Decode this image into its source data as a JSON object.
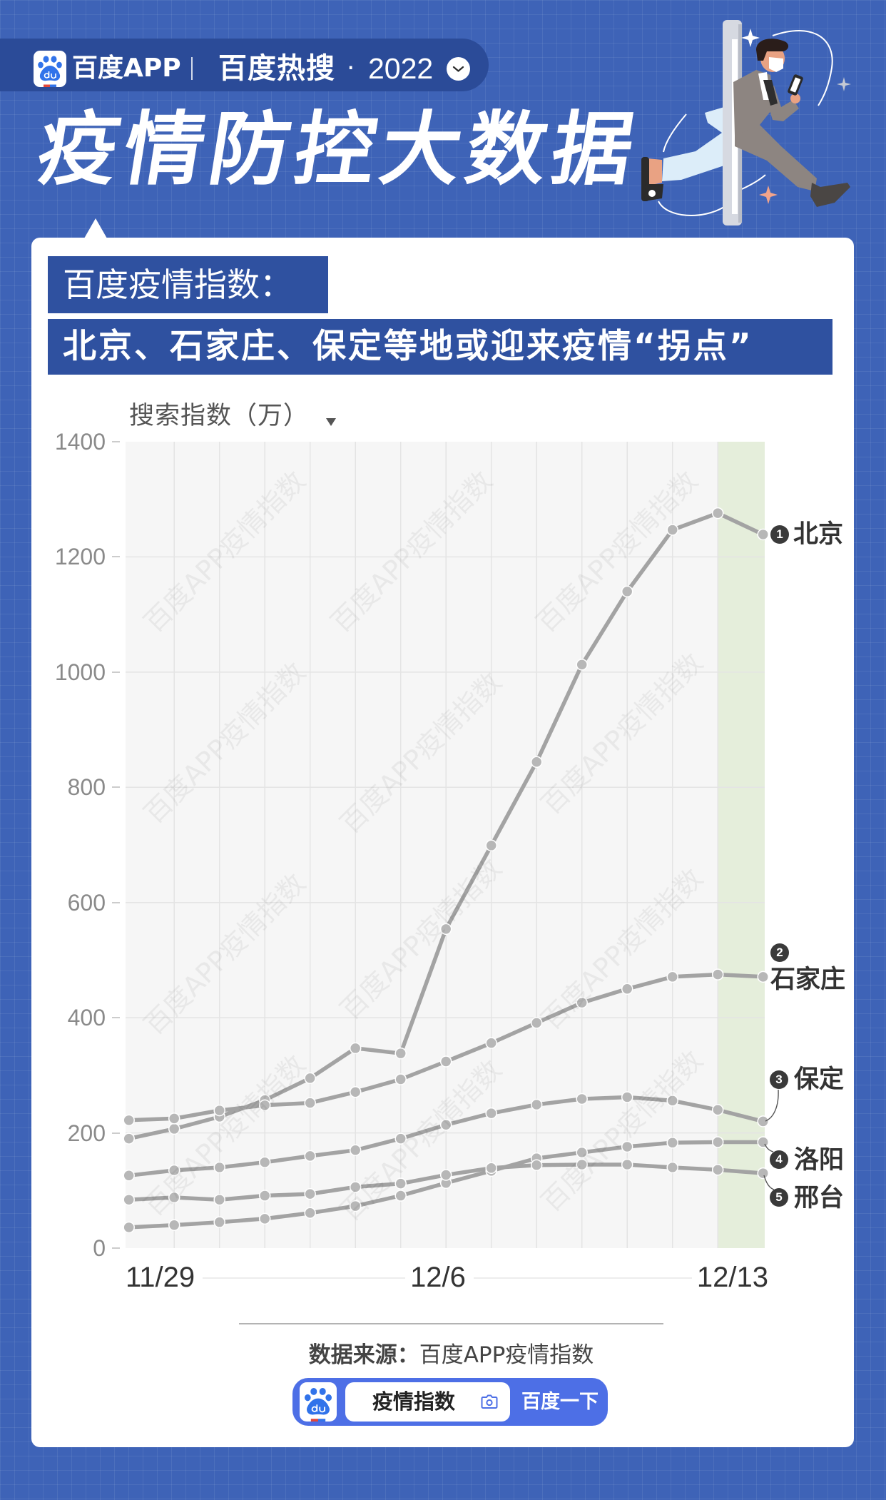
{
  "header": {
    "app_name": "百度APP",
    "section": "百度热搜",
    "separator": "·",
    "year": "2022"
  },
  "title": "疫情防控大数据",
  "card": {
    "kicker": "百度疫情指数：",
    "headline": "北京、石家庄、保定等地或迎来疫情“拐点”"
  },
  "icons": {
    "logo": "baidu-paw-logo",
    "header_expand": "chevron-down-icon",
    "y_axis_dropdown": "dropdown-triangle-icon",
    "search_camera": "camera-icon"
  },
  "chart_data": {
    "type": "line",
    "title": "百度疫情指数：北京、石家庄、保定等地或迎来疫情“拐点”",
    "xlabel": "",
    "ylabel": "搜索指数（万）",
    "x": [
      "11/29",
      "11/30",
      "12/1",
      "12/2",
      "12/3",
      "12/4",
      "12/5",
      "12/6",
      "12/7",
      "12/8",
      "12/9",
      "12/10",
      "12/11",
      "12/12",
      "12/13"
    ],
    "x_tick_labels": [
      "11/29",
      "12/6",
      "12/13"
    ],
    "y_ticks": [
      0,
      200,
      400,
      600,
      800,
      1000,
      1200,
      1400
    ],
    "ylim": [
      0,
      1400
    ],
    "grid": true,
    "legend_position": "right (direct line-end labels)",
    "highlight_range": [
      "12/12",
      "12/13"
    ],
    "watermark": "百度APP疫情指数",
    "colors": {
      "line": "#a3a3a3",
      "point": "#b7b7b7",
      "grid": "#e4e4e4",
      "plot_bg": "#f6f6f6",
      "highlight": "#e5eedb"
    },
    "series": [
      {
        "rank": "1",
        "name": "北京",
        "values": [
          190,
          207,
          228,
          257,
          295,
          347,
          338,
          554,
          699,
          844,
          1013,
          1140,
          1247,
          1276,
          1239
        ]
      },
      {
        "rank": "2",
        "name": "石家庄",
        "values": [
          222,
          225,
          239,
          248,
          252,
          271,
          293,
          324,
          356,
          391,
          426,
          450,
          471,
          475,
          471
        ]
      },
      {
        "rank": "3",
        "name": "保定",
        "values": [
          126,
          135,
          140,
          149,
          160,
          170,
          190,
          214,
          234,
          249,
          259,
          262,
          256,
          240,
          220
        ]
      },
      {
        "rank": "4",
        "name": "洛阳",
        "values": [
          36,
          40,
          45,
          51,
          61,
          73,
          91,
          113,
          134,
          156,
          166,
          176,
          183,
          184,
          184
        ]
      },
      {
        "rank": "5",
        "name": "邢台",
        "values": [
          84,
          88,
          84,
          91,
          94,
          106,
          112,
          127,
          139,
          144,
          145,
          145,
          140,
          136,
          130
        ]
      }
    ]
  },
  "footer": {
    "source_label": "数据来源：",
    "source_value": "百度APP疫情指数",
    "search": {
      "query": "疫情指数",
      "button": "百度一下"
    }
  }
}
